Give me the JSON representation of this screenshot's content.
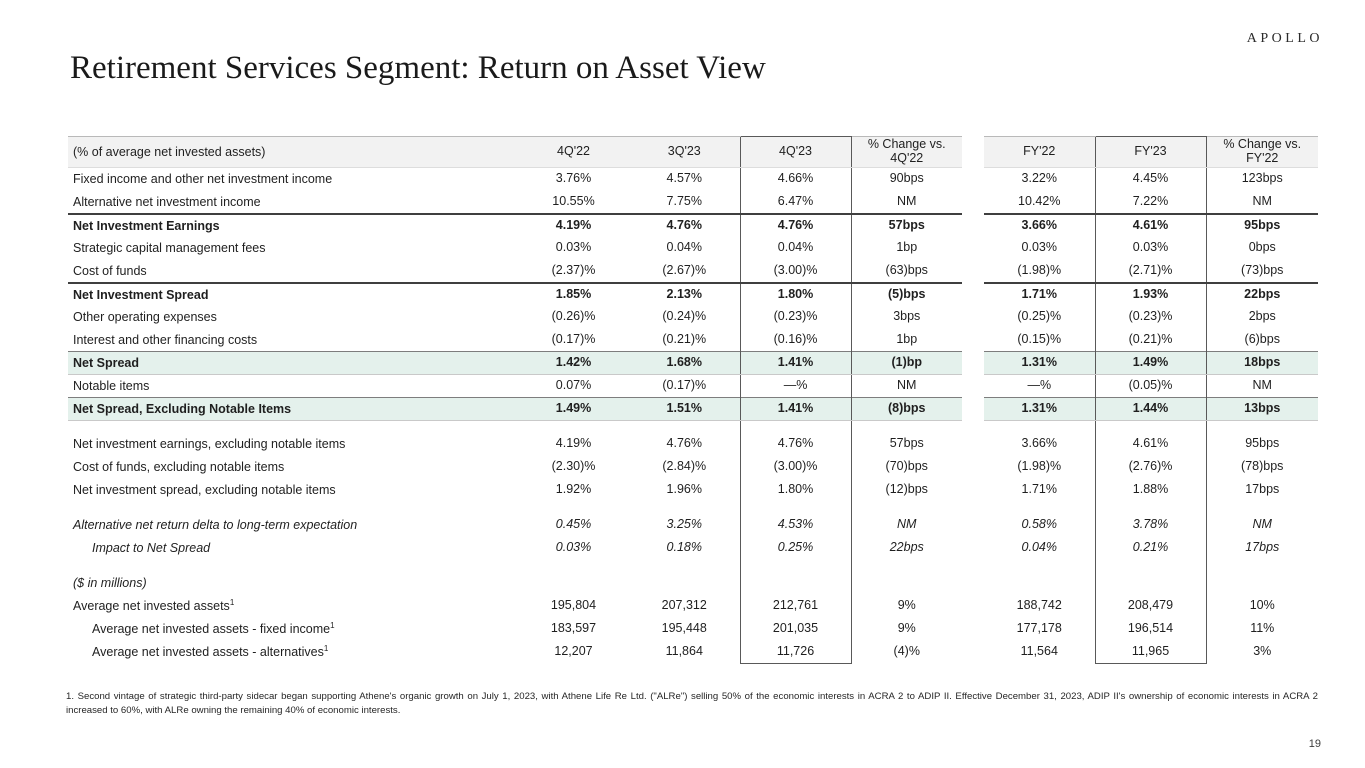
{
  "slide": {
    "logo": "APOLLO",
    "title": "Retirement Services Segment: Return on Asset View",
    "page_number": "19",
    "footnote": "1. Second vintage of strategic third-party sidecar began supporting Athene's organic growth on July 1, 2023, with Athene Life Re Ltd. (\"ALRe\") selling 50% of the economic interests in ACRA 2 to ADIP II. Effective December 31, 2023, ADIP II's ownership of economic interests in ACRA 2 increased to 60%, with ALRe owning the remaining 40% of economic interests."
  },
  "colors": {
    "highlight_row": "#e4f1ec",
    "header_bg": "#f2f2f2",
    "box_border": "#595959",
    "rule_dark": "#3f3f3f"
  },
  "table": {
    "header": {
      "label": "(% of average net invested assets)",
      "columns": [
        "4Q'22",
        "3Q'23",
        "4Q'23",
        "% Change vs. 4Q'22",
        "FY'22",
        "FY'23",
        "% Change vs. FY'22"
      ]
    },
    "rows": [
      {
        "label": "Fixed income and other net investment income",
        "values": [
          "3.76%",
          "4.57%",
          "4.66%",
          "90bps",
          "3.22%",
          "4.45%",
          "123bps"
        ]
      },
      {
        "label": "Alternative net investment income",
        "values": [
          "10.55%",
          "7.75%",
          "6.47%",
          "NM",
          "10.42%",
          "7.22%",
          "NM"
        ]
      },
      {
        "label": "Net Investment Earnings",
        "bold": true,
        "border_top": "dark",
        "values": [
          "4.19%",
          "4.76%",
          "4.76%",
          "57bps",
          "3.66%",
          "4.61%",
          "95bps"
        ]
      },
      {
        "label": "Strategic capital management fees",
        "values": [
          "0.03%",
          "0.04%",
          "0.04%",
          "1bp",
          "0.03%",
          "0.03%",
          "0bps"
        ]
      },
      {
        "label": "Cost of funds",
        "values": [
          "(2.37)%",
          "(2.67)%",
          "(3.00)%",
          "(63)bps",
          "(1.98)%",
          "(2.71)%",
          "(73)bps"
        ]
      },
      {
        "label": "Net Investment Spread",
        "bold": true,
        "border_top": "dark",
        "values": [
          "1.85%",
          "2.13%",
          "1.80%",
          "(5)bps",
          "1.71%",
          "1.93%",
          "22bps"
        ]
      },
      {
        "label": "Other operating expenses",
        "values": [
          "(0.26)%",
          "(0.24)%",
          "(0.23)%",
          "3bps",
          "(0.25)%",
          "(0.23)%",
          "2bps"
        ]
      },
      {
        "label": "Interest and other financing costs",
        "values": [
          "(0.17)%",
          "(0.21)%",
          "(0.16)%",
          "1bp",
          "(0.15)%",
          "(0.21)%",
          "(6)bps"
        ]
      },
      {
        "label": "Net Spread",
        "bold": true,
        "highlight": true,
        "border_top": "med",
        "border_bottom": "light",
        "values": [
          "1.42%",
          "1.68%",
          "1.41%",
          "(1)bp",
          "1.31%",
          "1.49%",
          "18bps"
        ]
      },
      {
        "label": "Notable items",
        "values": [
          "0.07%",
          "(0.17)%",
          "—%",
          "NM",
          "—%",
          "(0.05)%",
          "NM"
        ]
      },
      {
        "label": "Net Spread, Excluding Notable Items",
        "bold": true,
        "highlight": true,
        "border_top": "med",
        "border_bottom": "light",
        "values": [
          "1.49%",
          "1.51%",
          "1.41%",
          "(8)bps",
          "1.31%",
          "1.44%",
          "13bps"
        ]
      },
      {
        "spacer": true
      },
      {
        "label": "Net investment earnings, excluding notable items",
        "values": [
          "4.19%",
          "4.76%",
          "4.76%",
          "57bps",
          "3.66%",
          "4.61%",
          "95bps"
        ]
      },
      {
        "label": "Cost of funds, excluding notable items",
        "values": [
          "(2.30)%",
          "(2.84)%",
          "(3.00)%",
          "(70)bps",
          "(1.98)%",
          "(2.76)%",
          "(78)bps"
        ]
      },
      {
        "label": "Net investment spread, excluding notable items",
        "values": [
          "1.92%",
          "1.96%",
          "1.80%",
          "(12)bps",
          "1.71%",
          "1.88%",
          "17bps"
        ]
      },
      {
        "spacer": true
      },
      {
        "label": "Alternative net return delta to long-term expectation",
        "italic": true,
        "values": [
          "0.45%",
          "3.25%",
          "4.53%",
          "NM",
          "0.58%",
          "3.78%",
          "NM"
        ]
      },
      {
        "label": "Impact to Net Spread",
        "italic": true,
        "indent": 1,
        "values": [
          "0.03%",
          "0.18%",
          "0.25%",
          "22bps",
          "0.04%",
          "0.21%",
          "17bps"
        ]
      },
      {
        "spacer": true
      },
      {
        "label": "($ in millions)",
        "italic": true,
        "values": [
          "",
          "",
          "",
          "",
          "",
          "",
          ""
        ]
      },
      {
        "label": "Average net invested assets",
        "sup": "1",
        "values": [
          "195,804",
          "207,312",
          "212,761",
          "9%",
          "188,742",
          "208,479",
          "10%"
        ]
      },
      {
        "label": "Average net invested assets - fixed income",
        "sup": "1",
        "indent": 1,
        "values": [
          "183,597",
          "195,448",
          "201,035",
          "9%",
          "177,178",
          "196,514",
          "11%"
        ]
      },
      {
        "label": "Average net invested assets - alternatives",
        "sup": "1",
        "indent": 1,
        "values": [
          "12,207",
          "11,864",
          "11,726",
          "(4)%",
          "11,564",
          "11,965",
          "3%"
        ]
      }
    ]
  }
}
